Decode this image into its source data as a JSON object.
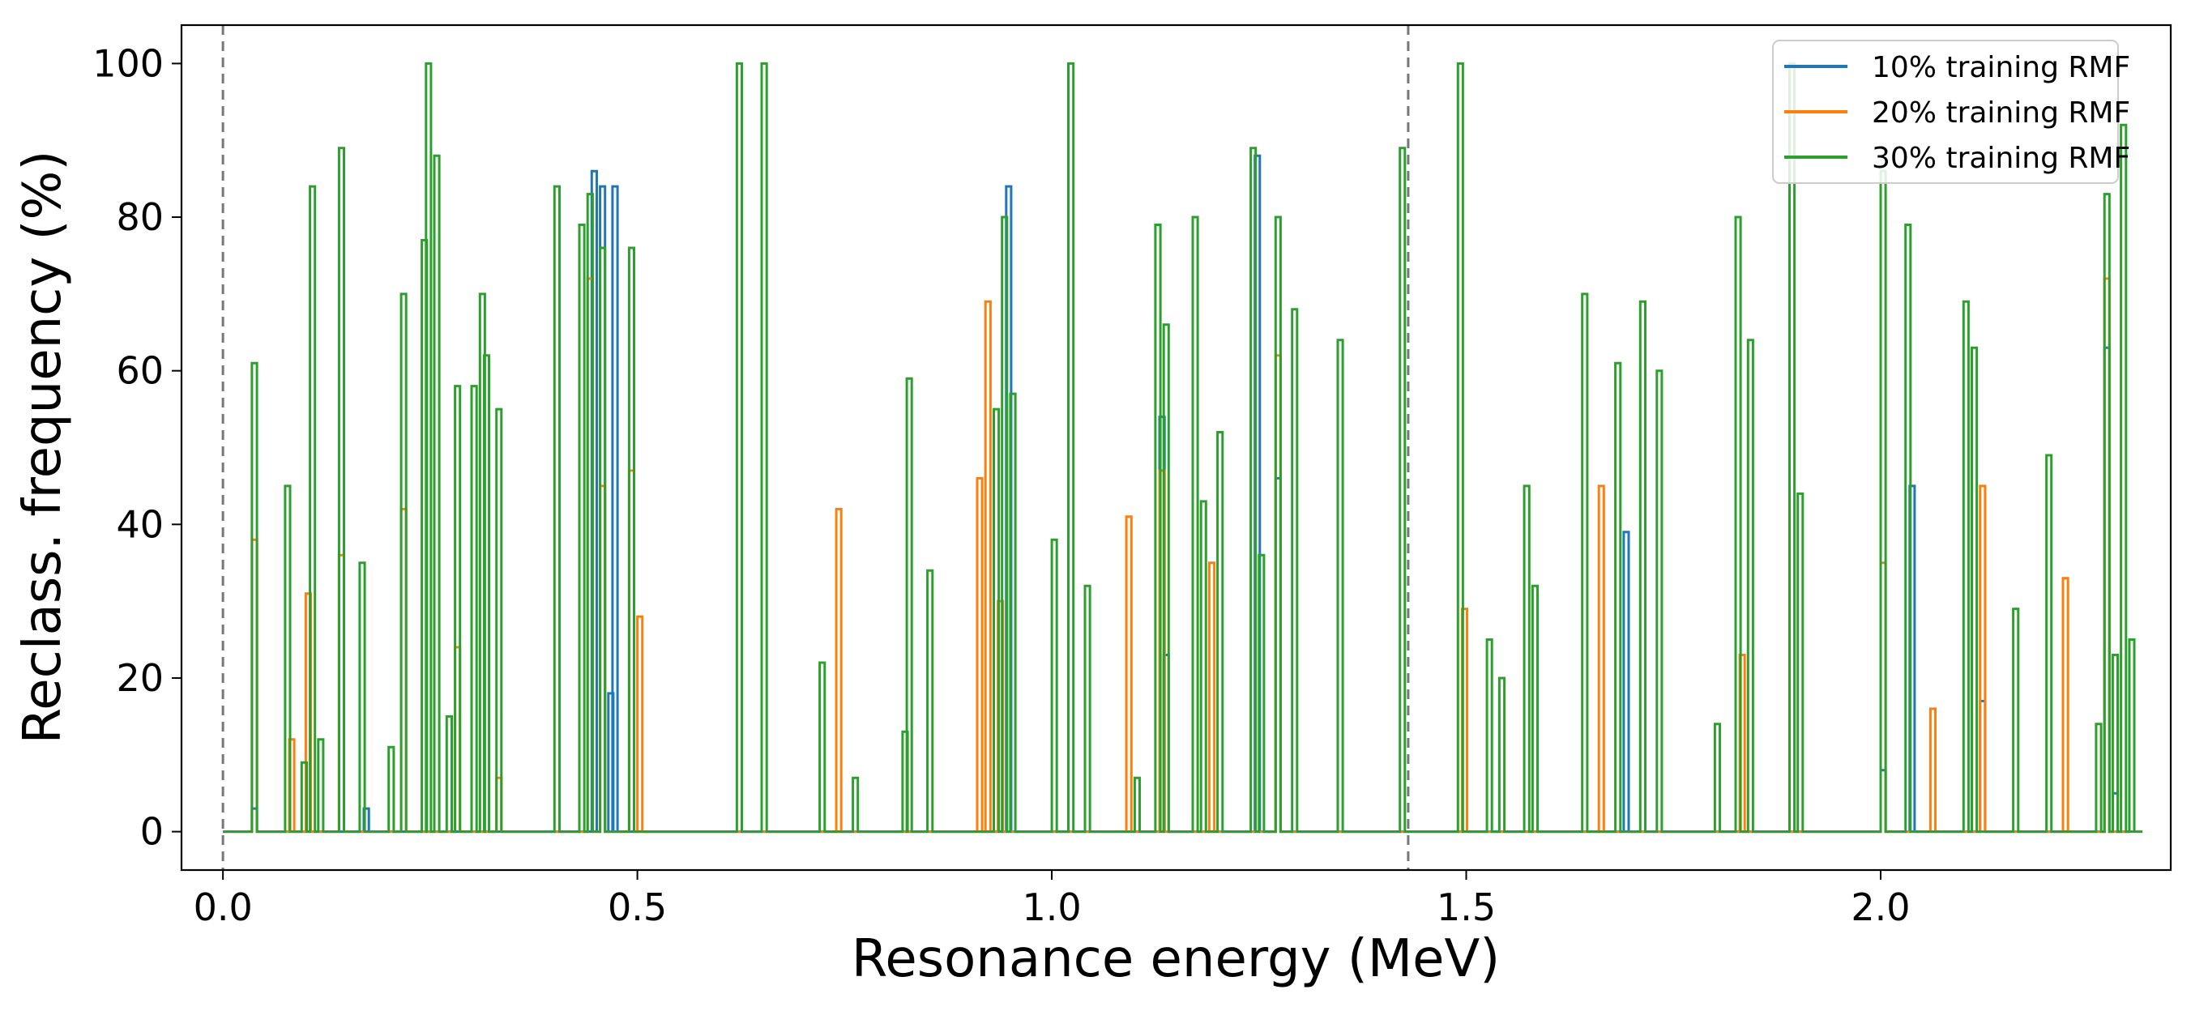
{
  "chart_data": {
    "type": "step-line",
    "title": "",
    "xlabel": "Resonance energy (MeV)",
    "ylabel": "Reclass. frequency (%)",
    "xlim": [
      -0.05,
      2.35
    ],
    "ylim": [
      -5,
      105
    ],
    "x_ticks": [
      0.0,
      0.5,
      1.0,
      1.5,
      2.0
    ],
    "x_tick_labels": [
      "0.0",
      "0.5",
      "1.0",
      "1.5",
      "2.0"
    ],
    "y_ticks": [
      0,
      20,
      40,
      60,
      80,
      100
    ],
    "y_tick_labels": [
      "0",
      "20",
      "40",
      "60",
      "80",
      "100"
    ],
    "vlines": [
      0.0,
      1.43
    ],
    "vline_color": "#777777",
    "legend_position": "top-right",
    "series": [
      {
        "name": "10% training RMF",
        "color": "#1f77b4",
        "points": [
          [
            0.0,
            0
          ],
          [
            0.035,
            3
          ],
          [
            0.17,
            3
          ],
          [
            0.445,
            86
          ],
          [
            0.455,
            84
          ],
          [
            0.465,
            18
          ],
          [
            0.47,
            84
          ],
          [
            0.945,
            84
          ],
          [
            1.13,
            54
          ],
          [
            1.135,
            23
          ],
          [
            1.245,
            88
          ],
          [
            1.27,
            46
          ],
          [
            1.69,
            39
          ],
          [
            2.0,
            8
          ],
          [
            2.035,
            45
          ],
          [
            2.12,
            17
          ],
          [
            2.27,
            63
          ],
          [
            2.28,
            5
          ]
        ]
      },
      {
        "name": "20% training RMF",
        "color": "#ff7f0e",
        "points": [
          [
            0.0,
            0
          ],
          [
            0.035,
            38
          ],
          [
            0.08,
            12
          ],
          [
            0.1,
            31
          ],
          [
            0.14,
            36
          ],
          [
            0.215,
            42
          ],
          [
            0.28,
            24
          ],
          [
            0.33,
            7
          ],
          [
            0.44,
            72
          ],
          [
            0.455,
            45
          ],
          [
            0.49,
            47
          ],
          [
            0.5,
            28
          ],
          [
            0.74,
            42
          ],
          [
            0.91,
            46
          ],
          [
            0.92,
            69
          ],
          [
            0.935,
            30
          ],
          [
            1.09,
            41
          ],
          [
            1.13,
            47
          ],
          [
            1.19,
            35
          ],
          [
            1.27,
            62
          ],
          [
            1.495,
            29
          ],
          [
            1.66,
            45
          ],
          [
            1.83,
            23
          ],
          [
            2.0,
            35
          ],
          [
            2.06,
            16
          ],
          [
            2.12,
            45
          ],
          [
            2.22,
            33
          ],
          [
            2.27,
            72
          ]
        ]
      },
      {
        "name": "30% training RMF",
        "color": "#2ca02c",
        "points": [
          [
            0.0,
            0
          ],
          [
            0.035,
            61
          ],
          [
            0.075,
            45
          ],
          [
            0.095,
            9
          ],
          [
            0.105,
            84
          ],
          [
            0.115,
            12
          ],
          [
            0.14,
            89
          ],
          [
            0.165,
            35
          ],
          [
            0.2,
            11
          ],
          [
            0.215,
            70
          ],
          [
            0.24,
            77
          ],
          [
            0.245,
            100
          ],
          [
            0.255,
            88
          ],
          [
            0.27,
            15
          ],
          [
            0.28,
            58
          ],
          [
            0.3,
            58
          ],
          [
            0.31,
            70
          ],
          [
            0.315,
            62
          ],
          [
            0.33,
            55
          ],
          [
            0.4,
            84
          ],
          [
            0.43,
            79
          ],
          [
            0.44,
            83
          ],
          [
            0.455,
            76
          ],
          [
            0.49,
            76
          ],
          [
            0.62,
            100
          ],
          [
            0.65,
            100
          ],
          [
            0.72,
            22
          ],
          [
            0.76,
            7
          ],
          [
            0.82,
            13
          ],
          [
            0.825,
            59
          ],
          [
            0.85,
            34
          ],
          [
            0.93,
            55
          ],
          [
            0.94,
            80
          ],
          [
            0.95,
            57
          ],
          [
            1.0,
            38
          ],
          [
            1.02,
            100
          ],
          [
            1.04,
            32
          ],
          [
            1.1,
            7
          ],
          [
            1.125,
            79
          ],
          [
            1.135,
            66
          ],
          [
            1.17,
            80
          ],
          [
            1.18,
            43
          ],
          [
            1.2,
            52
          ],
          [
            1.24,
            89
          ],
          [
            1.25,
            36
          ],
          [
            1.27,
            80
          ],
          [
            1.29,
            68
          ],
          [
            1.345,
            64
          ],
          [
            1.42,
            89
          ],
          [
            1.49,
            100
          ],
          [
            1.525,
            25
          ],
          [
            1.54,
            20
          ],
          [
            1.57,
            45
          ],
          [
            1.58,
            32
          ],
          [
            1.64,
            70
          ],
          [
            1.68,
            61
          ],
          [
            1.71,
            69
          ],
          [
            1.73,
            60
          ],
          [
            1.8,
            14
          ],
          [
            1.825,
            80
          ],
          [
            1.84,
            64
          ],
          [
            1.89,
            100
          ],
          [
            1.9,
            44
          ],
          [
            2.0,
            86
          ],
          [
            2.03,
            79
          ],
          [
            2.1,
            69
          ],
          [
            2.11,
            63
          ],
          [
            2.16,
            29
          ],
          [
            2.2,
            49
          ],
          [
            2.26,
            14
          ],
          [
            2.27,
            83
          ],
          [
            2.28,
            23
          ],
          [
            2.29,
            92
          ],
          [
            2.3,
            25
          ],
          [
            2.31,
            0
          ]
        ]
      }
    ]
  }
}
